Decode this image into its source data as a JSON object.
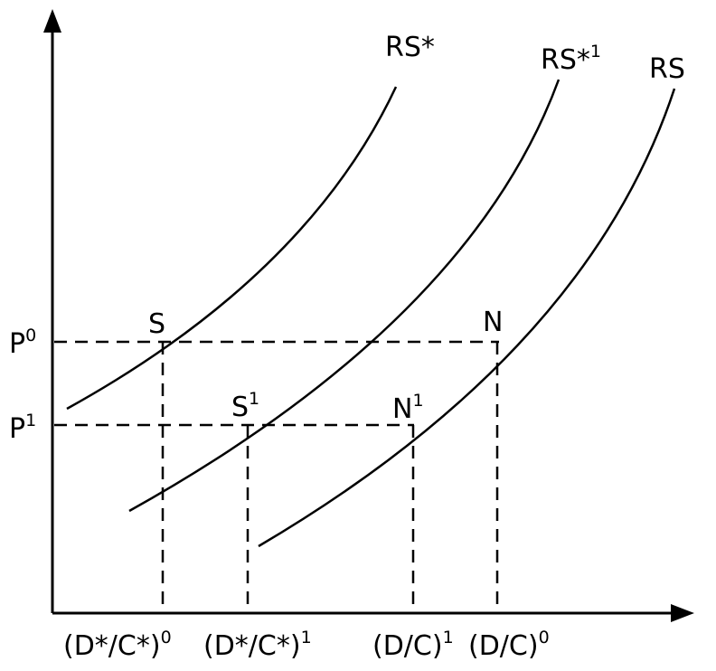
{
  "axes": {
    "y_labels": [
      {
        "id": "p0",
        "base": "P",
        "sup": "0"
      },
      {
        "id": "p1",
        "base": "P",
        "sup": "1"
      }
    ],
    "x_labels": [
      {
        "id": "dc_star_0",
        "base": "(D*/C*)",
        "sup": "0"
      },
      {
        "id": "dc_star_1",
        "base": "(D*/C*)",
        "sup": "1"
      },
      {
        "id": "dc_1",
        "base": "(D/C)",
        "sup": "1"
      },
      {
        "id": "dc_0",
        "base": "(D/C)",
        "sup": "0"
      }
    ]
  },
  "curves": [
    {
      "id": "rs_star",
      "base": "RS*",
      "sup": ""
    },
    {
      "id": "rs_star_1",
      "base": "RS*",
      "sup": "1"
    },
    {
      "id": "rs",
      "base": "RS",
      "sup": ""
    }
  ],
  "points": [
    {
      "id": "s",
      "base": "S",
      "sup": ""
    },
    {
      "id": "s1",
      "base": "S",
      "sup": "1"
    },
    {
      "id": "n1",
      "base": "N",
      "sup": "1"
    },
    {
      "id": "n",
      "base": "N",
      "sup": ""
    }
  ]
}
